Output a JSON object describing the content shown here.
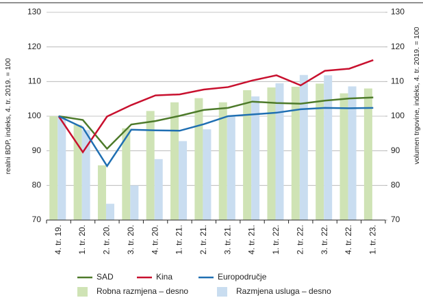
{
  "chart_data": {
    "type": "bar-line",
    "y_label": "realni BDP, indeks, 4. tr. 2019. = 100",
    "y2_label": "volumen trgovine, indeks, 4. tr. 2019. = 100",
    "categories": [
      "4. tr. 19.",
      "1. tr. 20.",
      "2. tr. 20.",
      "3. tr. 20.",
      "4. tr. 20.",
      "1. tr. 21.",
      "2. tr. 21.",
      "3. tr. 21.",
      "4. tr. 21.",
      "1. tr. 22.",
      "2. tr. 22.",
      "3. tr. 22.",
      "4. tr. 22.",
      "1. tr. 23."
    ],
    "series": [
      {
        "name": "SAD",
        "type": "line",
        "color": "#4d7a2a",
        "values": [
          100,
          98.9,
          90.6,
          97.6,
          98.6,
          100.1,
          101.8,
          102.4,
          104.2,
          103.8,
          103.6,
          104.5,
          105.1,
          105.4
        ]
      },
      {
        "name": "Kina",
        "type": "line",
        "color": "#c8102e",
        "values": [
          100,
          89.6,
          99.9,
          103.2,
          106.0,
          106.3,
          107.7,
          108.4,
          110.3,
          111.8,
          108.9,
          113.1,
          113.7,
          116.2
        ]
      },
      {
        "name": "Europodručje",
        "type": "line",
        "color": "#1f6fb2",
        "values": [
          100,
          96.7,
          85.6,
          96.1,
          95.9,
          95.8,
          97.7,
          100.0,
          100.5,
          101.0,
          102.0,
          102.4,
          102.3,
          102.4
        ]
      },
      {
        "name": "Robna razmjena – desno",
        "type": "bar",
        "axis": "y2",
        "color": "#cfe3b5",
        "values": [
          100,
          97.5,
          85.8,
          96.5,
          101.5,
          104.0,
          105.2,
          104.0,
          107.5,
          108.3,
          108.5,
          109.4,
          106.6,
          108.0
        ]
      },
      {
        "name": "Razmjena usluga – desno",
        "type": "bar",
        "axis": "y2",
        "color": "#c9ddf0",
        "values": [
          100,
          96.0,
          74.7,
          80.0,
          87.6,
          92.8,
          96.2,
          99.9,
          105.7,
          109.5,
          111.9,
          111.8,
          108.6,
          null
        ]
      }
    ],
    "ylim": [
      70,
      130
    ],
    "yticks": [
      70,
      80,
      90,
      100,
      110,
      120,
      130
    ],
    "y2lim": [
      70,
      130
    ],
    "y2ticks": [
      70,
      80,
      90,
      100,
      110,
      120,
      130
    ],
    "grid": true
  }
}
